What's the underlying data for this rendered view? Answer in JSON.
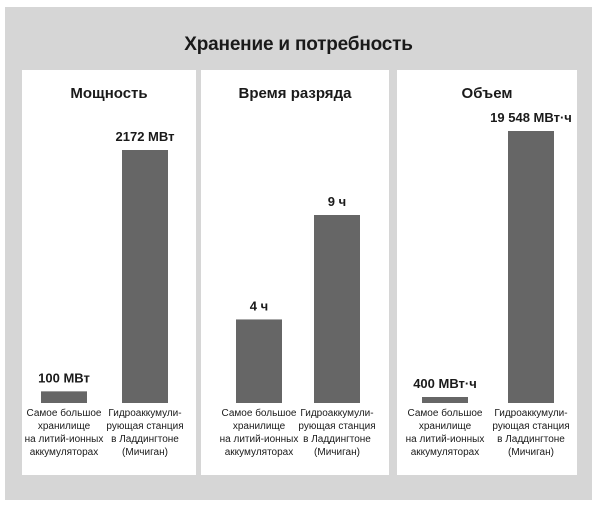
{
  "title": "Хранение и потребность",
  "colors": {
    "bar": "#666666",
    "panel_bg": "#ffffff",
    "frame_bg": "#d6d6d6",
    "text": "#1a1a1a"
  },
  "chart_data": [
    {
      "type": "bar",
      "title": "Мощность",
      "categories": [
        [
          "Самое большое",
          "хранилище",
          "на литий-ионных",
          "аккумуляторах"
        ],
        [
          "Гидроаккумули-",
          "рующая станция",
          "в Ладдингтоне",
          "(Мичиган)"
        ]
      ],
      "values": [
        100,
        2172
      ],
      "value_labels": [
        "100 МВт",
        "2172 МВт"
      ],
      "unit": "МВт",
      "ylim": [
        0,
        2172
      ]
    },
    {
      "type": "bar",
      "title": "Время разряда",
      "categories": [
        [
          "Самое большое",
          "хранилище",
          "на литий-ионных",
          "аккумуляторах"
        ],
        [
          "Гидроаккумули-",
          "рующая станция",
          "в Ладдингтоне",
          "(Мичиган)"
        ]
      ],
      "values": [
        4,
        9
      ],
      "value_labels": [
        "4 ч",
        "9 ч"
      ],
      "unit": "ч",
      "ylim": [
        0,
        9
      ]
    },
    {
      "type": "bar",
      "title": "Объем",
      "categories": [
        [
          "Самое большое",
          "хранилище",
          "на литий-ионных",
          "аккумуляторах"
        ],
        [
          "Гидроаккумули-",
          "рующая станция",
          "в Ладдингтоне",
          "(Мичиган)"
        ]
      ],
      "values": [
        400,
        19548
      ],
      "value_labels": [
        "400 МВт·ч",
        "19 548 МВт·ч"
      ],
      "unit": "МВт·ч",
      "ylim": [
        0,
        19548
      ]
    }
  ]
}
